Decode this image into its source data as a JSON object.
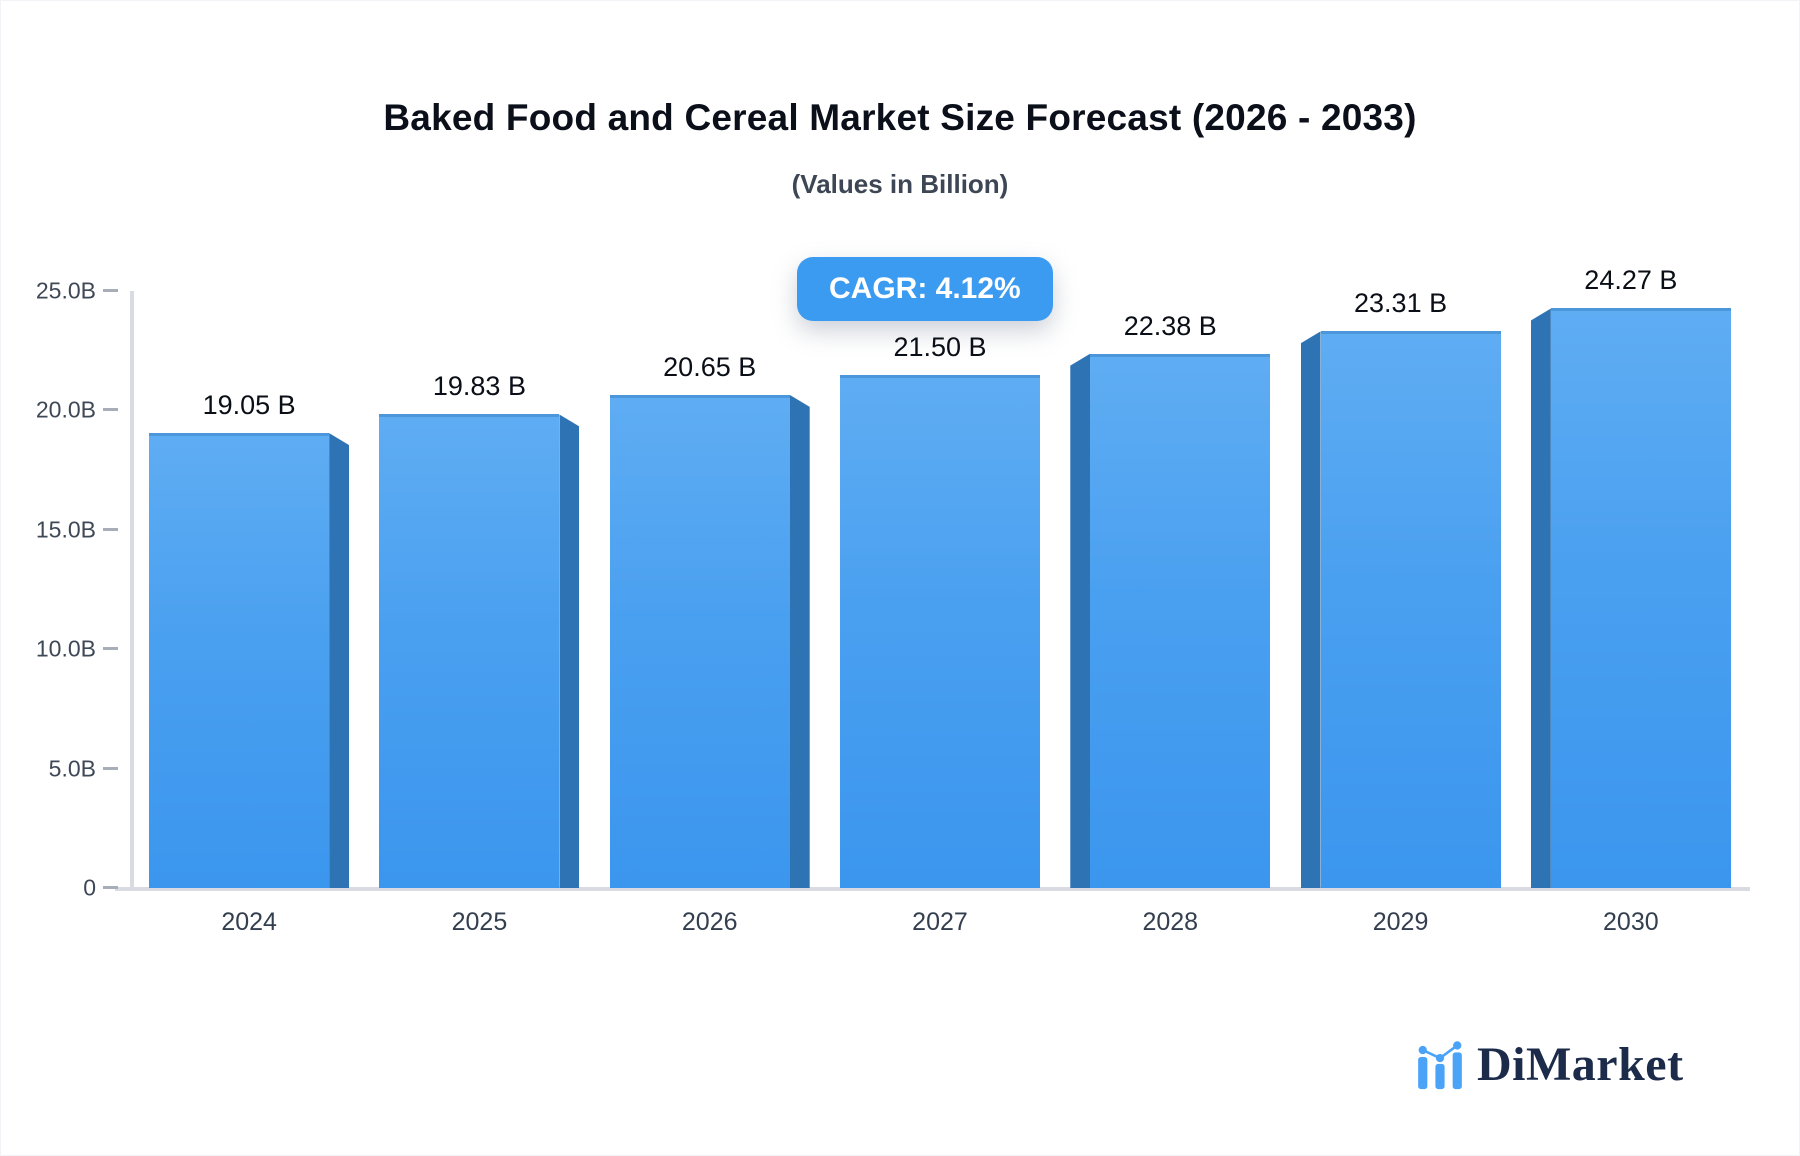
{
  "header": {
    "title": "Baked Food and Cereal Market Size Forecast (2026 - 2033)",
    "subtitle": "(Values in Billion)"
  },
  "badge": {
    "label": "CAGR: 4.12%",
    "background_color": "#3b9bf0",
    "text_color": "#ffffff"
  },
  "chart_data": {
    "type": "bar",
    "title": "Baked Food and Cereal Market Size Forecast (2026 - 2033)",
    "subtitle": "(Values in Billion)",
    "annotation": "CAGR: 4.12%",
    "categories": [
      "2024",
      "2025",
      "2026",
      "2027",
      "2028",
      "2029",
      "2030"
    ],
    "values": [
      19.05,
      19.83,
      20.65,
      21.5,
      22.38,
      23.31,
      24.27
    ],
    "value_labels": [
      "19.05 B",
      "19.83 B",
      "20.65 B",
      "21.50 B",
      "22.38 B",
      "23.31 B",
      "24.27 B"
    ],
    "xlabel": "",
    "ylabel": "",
    "ylim": [
      0,
      25
    ],
    "yticks": [
      {
        "value": 25,
        "label": "25.0B"
      },
      {
        "value": 20,
        "label": "20.0B"
      },
      {
        "value": 15,
        "label": "15.0B"
      },
      {
        "value": 10,
        "label": "10.0B"
      },
      {
        "value": 5,
        "label": "5.0B"
      },
      {
        "value": 0,
        "label": "0"
      }
    ],
    "grid": false,
    "legend": "none",
    "bar_color_top": "#5fadf3",
    "bar_color_bottom": "#3b96ee",
    "bar_side_color": "#2e74b4",
    "effect": "3d-bevel-toward-center"
  },
  "footer": {
    "brand": "DiMarket",
    "logo_icon": "bar-line-chart-icon",
    "brand_text_color": "#1c2b4a",
    "logo_blue": "#4aa3f7"
  }
}
